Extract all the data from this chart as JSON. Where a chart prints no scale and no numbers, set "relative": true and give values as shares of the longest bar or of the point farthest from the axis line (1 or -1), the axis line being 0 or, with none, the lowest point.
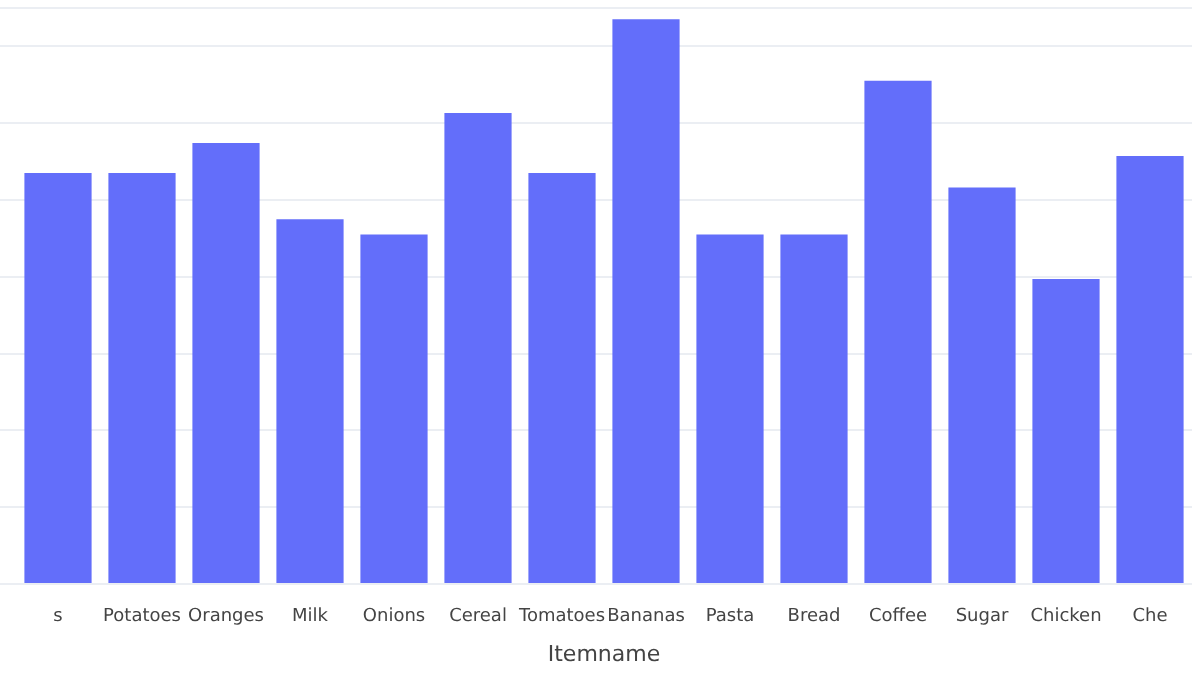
{
  "chart_data": {
    "type": "bar",
    "xlabel": "Itemname",
    "relative": true,
    "grid": true,
    "color": "#636efa",
    "categories": [
      "s",
      "Potatoes",
      "Oranges",
      "Milk",
      "Onions",
      "Cereal",
      "Tomatoes",
      "Bananas",
      "Pasta",
      "Bread",
      "Coffee",
      "Sugar",
      "Chicken",
      "Che"
    ],
    "values": [
      0.728,
      0.728,
      0.781,
      0.646,
      0.619,
      0.834,
      0.728,
      1,
      0.619,
      0.619,
      0.891,
      0.702,
      0.54,
      0.758
    ]
  }
}
